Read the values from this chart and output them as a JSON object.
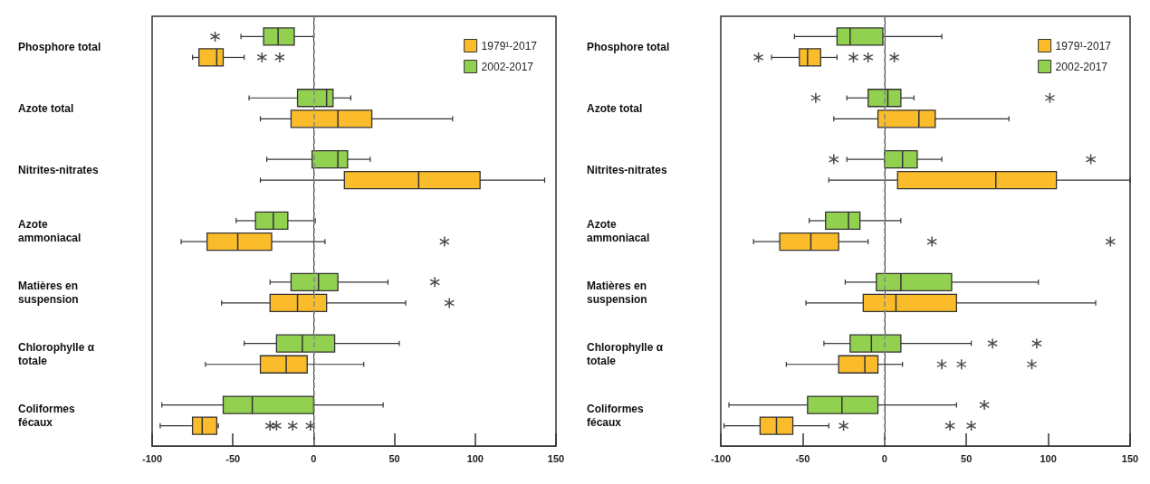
{
  "chart_data": [
    {
      "type": "box",
      "orientation": "horizontal",
      "categories": [
        "Phosphore total",
        "Azote total",
        "Nitrites-nitrates",
        "Azote ammoniacal",
        "Matières en suspension",
        "Chlorophylle α totale",
        "Coliformes fécaux"
      ],
      "xlim": [
        -100,
        150
      ],
      "xticks": [
        -100,
        -50,
        0,
        50,
        100,
        150
      ],
      "legend": "top right",
      "grid": false,
      "ref_lines": [
        {
          "axis": "x",
          "value": 0,
          "color": "#888888",
          "line_style": "dashed"
        }
      ],
      "series": [
        {
          "name": "1979¹-2017",
          "color": "#fbbc2c",
          "boxes": [
            {
              "low": -75,
              "q1": -71,
              "median": -60,
              "q3": -56,
              "high": -43,
              "outliers": [
                -32,
                -21
              ]
            },
            {
              "low": -33,
              "q1": -14,
              "median": 15,
              "q3": 36,
              "high": 86
            },
            {
              "low": -33,
              "q1": 19,
              "median": 65,
              "q3": 103,
              "high": 143
            },
            {
              "low": -82,
              "q1": -66,
              "median": -47,
              "q3": -26,
              "high": 7,
              "outliers": [
                81
              ]
            },
            {
              "low": -57,
              "q1": -27,
              "median": -10,
              "q3": 8,
              "high": 57,
              "outliers": [
                84
              ]
            },
            {
              "low": -67,
              "q1": -33,
              "median": -17,
              "q3": -4,
              "high": 31
            },
            {
              "low": -95,
              "q1": -75,
              "median": -69,
              "q3": -60,
              "high": -59,
              "outliers": [
                -27,
                -23,
                -13,
                -2
              ]
            }
          ]
        },
        {
          "name": "2002-2017",
          "color": "#92d050",
          "boxes": [
            {
              "low": -45,
              "q1": -31,
              "median": -22,
              "q3": -12,
              "high": 0,
              "outliers": [
                -61
              ]
            },
            {
              "low": -40,
              "q1": -10,
              "median": 8,
              "q3": 12,
              "high": 23
            },
            {
              "low": -29,
              "q1": -1,
              "median": 15,
              "q3": 21,
              "high": 35
            },
            {
              "low": -48,
              "q1": -36,
              "median": -25,
              "q3": -16,
              "high": 1
            },
            {
              "low": -27,
              "q1": -14,
              "median": 3,
              "q3": 15,
              "high": 46,
              "outliers": [
                75
              ]
            },
            {
              "low": -43,
              "q1": -23,
              "median": -7,
              "q3": 13,
              "high": 53
            },
            {
              "low": -94,
              "q1": -56,
              "median": -38,
              "q3": 0,
              "high": 43
            }
          ]
        }
      ]
    },
    {
      "type": "box",
      "orientation": "horizontal",
      "categories": [
        "Phosphore total",
        "Azote total",
        "Nitrites-nitrates",
        "Azote ammoniacal",
        "Matières en suspension",
        "Chlorophylle α totale",
        "Coliformes fécaux"
      ],
      "xlim": [
        -100,
        150
      ],
      "xticks": [
        -100,
        -50,
        0,
        50,
        100,
        150
      ],
      "legend": "top right",
      "grid": false,
      "ref_lines": [
        {
          "axis": "x",
          "value": 0,
          "color": "#888888",
          "line_style": "dashed"
        }
      ],
      "series": [
        {
          "name": "1979¹-2017",
          "color": "#fbbc2c",
          "boxes": [
            {
              "low": -69,
              "q1": -52,
              "median": -47,
              "q3": -39,
              "high": -29,
              "outliers": [
                -77,
                -19,
                -10,
                6
              ]
            },
            {
              "low": -31,
              "q1": -4,
              "median": 21,
              "q3": 31,
              "high": 76
            },
            {
              "low": -34,
              "q1": 8,
              "median": 68,
              "q3": 105,
              "high": 150
            },
            {
              "low": -80,
              "q1": -64,
              "median": -45,
              "q3": -28,
              "high": -10,
              "outliers": [
                29,
                138
              ]
            },
            {
              "low": -48,
              "q1": -13,
              "median": 7,
              "q3": 44,
              "high": 129
            },
            {
              "low": -60,
              "q1": -28,
              "median": -12,
              "q3": -4,
              "high": 11,
              "outliers": [
                35,
                47,
                90
              ]
            },
            {
              "low": -98,
              "q1": -76,
              "median": -66,
              "q3": -56,
              "high": -34,
              "outliers": [
                -25,
                40,
                53
              ]
            }
          ]
        },
        {
          "name": "2002-2017",
          "color": "#92d050",
          "boxes": [
            {
              "low": -55,
              "q1": -29,
              "median": -21,
              "q3": -1,
              "high": 35
            },
            {
              "low": -23,
              "q1": -10,
              "median": 2,
              "q3": 10,
              "high": 18,
              "outliers": [
                -42,
                101
              ]
            },
            {
              "low": -23,
              "q1": 0,
              "median": 11,
              "q3": 20,
              "high": 35,
              "outliers": [
                -31,
                126
              ]
            },
            {
              "low": -46,
              "q1": -36,
              "median": -22,
              "q3": -15,
              "high": 10
            },
            {
              "low": -24,
              "q1": -5,
              "median": 10,
              "q3": 41,
              "high": 94
            },
            {
              "low": -37,
              "q1": -21,
              "median": -8,
              "q3": 10,
              "high": 53,
              "outliers": [
                66,
                93
              ]
            },
            {
              "low": -95,
              "q1": -47,
              "median": -26,
              "q3": -4,
              "high": 44,
              "outliers": [
                61
              ]
            }
          ]
        }
      ]
    }
  ]
}
